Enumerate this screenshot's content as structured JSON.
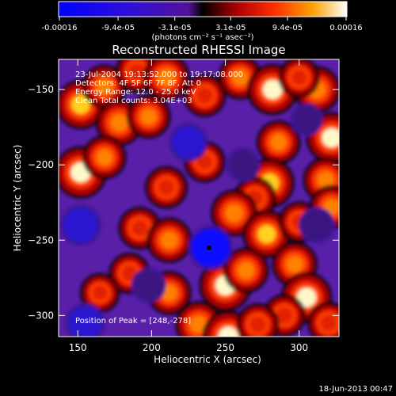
{
  "colorbar": {
    "tick_labels": [
      "-0.00016",
      "-9.4e-05",
      "-3.1e-05",
      "3.1e-05",
      "9.4e-05",
      "0.00016"
    ],
    "unit_label": "(photons cm⁻² s⁻¹ asec⁻²)",
    "range": [
      -0.00016,
      0.00016
    ]
  },
  "chart_data": {
    "type": "heatmap",
    "title": "Reconstructed RHESSI Image",
    "xlabel": "Heliocentric X (arcsec)",
    "ylabel": "Heliocentric Y (arcsec)",
    "xlim": [
      137,
      327
    ],
    "ylim": [
      -314,
      -130
    ],
    "x_ticks": [
      150,
      200,
      250,
      300
    ],
    "y_ticks": [
      -150,
      -200,
      -250,
      -300
    ],
    "annotations": [
      "23-Jul-2004 19:13:52.000 to 19:17:08.000",
      "Detectors: 4F 5F 6F 7F 8F, Att 0",
      "Energy Range: 12.0 - 25.0 keV",
      "Clean      Total counts: 3.04E+03"
    ],
    "peak_label": "Position of Peak = [248,-278]",
    "marker": {
      "x": 239,
      "y": -255
    },
    "blobs": [
      {
        "x": 152,
        "y": -160,
        "value": 0.00014
      },
      {
        "x": 168,
        "y": -148,
        "value": 0.0001
      },
      {
        "x": 190,
        "y": -138,
        "value": 9e-05
      },
      {
        "x": 210,
        "y": -142,
        "value": 0.00012
      },
      {
        "x": 236,
        "y": -154,
        "value": 9e-05
      },
      {
        "x": 260,
        "y": -142,
        "value": 0.0001
      },
      {
        "x": 282,
        "y": -150,
        "value": 0.00015
      },
      {
        "x": 312,
        "y": -150,
        "value": 0.00012
      },
      {
        "x": 300,
        "y": -142,
        "value": 8e-05
      },
      {
        "x": 178,
        "y": -172,
        "value": 0.00012
      },
      {
        "x": 198,
        "y": -168,
        "value": 0.0001
      },
      {
        "x": 286,
        "y": -185,
        "value": 0.0001
      },
      {
        "x": 322,
        "y": -182,
        "value": 0.00015
      },
      {
        "x": 152,
        "y": -205,
        "value": 0.00016
      },
      {
        "x": 168,
        "y": -195,
        "value": 0.0001
      },
      {
        "x": 210,
        "y": -215,
        "value": 9e-05
      },
      {
        "x": 236,
        "y": -198,
        "value": 8e-05
      },
      {
        "x": 280,
        "y": -212,
        "value": 0.00014
      },
      {
        "x": 318,
        "y": -210,
        "value": 0.00011
      },
      {
        "x": 270,
        "y": -222,
        "value": 9e-05
      },
      {
        "x": 192,
        "y": -242,
        "value": 9e-05
      },
      {
        "x": 212,
        "y": -250,
        "value": 0.00011
      },
      {
        "x": 256,
        "y": -232,
        "value": 0.00012
      },
      {
        "x": 278,
        "y": -246,
        "value": 0.00013
      },
      {
        "x": 300,
        "y": -238,
        "value": 8e-05
      },
      {
        "x": 322,
        "y": -228,
        "value": 0.0001
      },
      {
        "x": 185,
        "y": -272,
        "value": 8e-05
      },
      {
        "x": 212,
        "y": -285,
        "value": 0.0001
      },
      {
        "x": 250,
        "y": -280,
        "value": 0.00016
      },
      {
        "x": 264,
        "y": -270,
        "value": 0.00011
      },
      {
        "x": 297,
        "y": -266,
        "value": 0.00011
      },
      {
        "x": 305,
        "y": -288,
        "value": 0.00015
      },
      {
        "x": 290,
        "y": -300,
        "value": 9e-05
      },
      {
        "x": 165,
        "y": -285,
        "value": 7e-05
      },
      {
        "x": 232,
        "y": -306,
        "value": 0.00012
      },
      {
        "x": 252,
        "y": -314,
        "value": 0.00016
      },
      {
        "x": 272,
        "y": -306,
        "value": 9e-05
      },
      {
        "x": 320,
        "y": -305,
        "value": 9e-05
      },
      {
        "x": 152,
        "y": -240,
        "value": -0.00013
      },
      {
        "x": 225,
        "y": -185,
        "value": -0.00011
      },
      {
        "x": 240,
        "y": -255,
        "value": -0.00016
      },
      {
        "x": 155,
        "y": -305,
        "value": -0.00012
      },
      {
        "x": 312,
        "y": -240,
        "value": -9e-05
      },
      {
        "x": 262,
        "y": -200,
        "value": -7e-05
      },
      {
        "x": 198,
        "y": -280,
        "value": -8e-05
      },
      {
        "x": 305,
        "y": -170,
        "value": -6e-05
      }
    ]
  },
  "footer": {
    "date": "18-Jun-2013 00:47"
  }
}
